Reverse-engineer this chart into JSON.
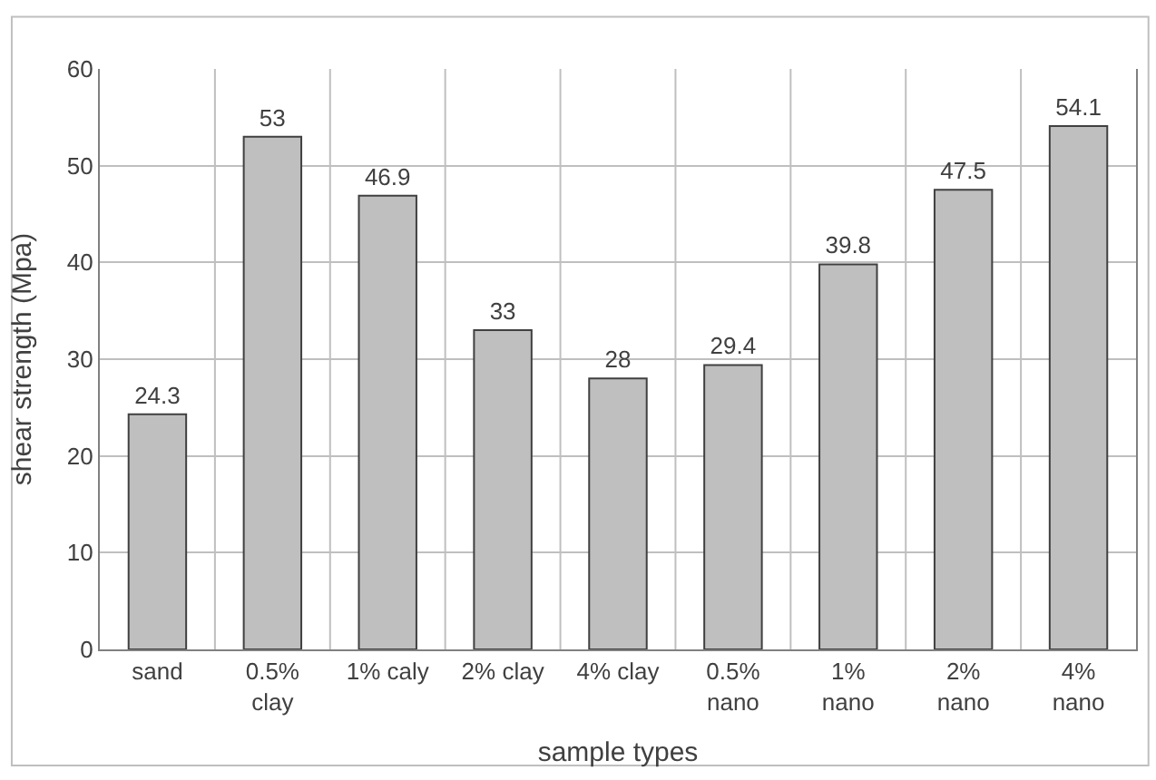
{
  "chart_data": {
    "type": "bar",
    "xlabel": "sample types",
    "ylabel": "shear strength (Mpa)",
    "categories": [
      "sand",
      "0.5%\nclay",
      "1% caly",
      "2% clay",
      "4% clay",
      "0.5%\nnano",
      "1%\nnano",
      "2%\nnano",
      "4%\nnano"
    ],
    "values": [
      24.3,
      53,
      46.9,
      33,
      28,
      29.4,
      39.8,
      47.5,
      54.1
    ],
    "color": "#bfbfbf",
    "ylim": [
      0,
      60
    ],
    "yticks": [
      0,
      10,
      20,
      30,
      40,
      50,
      60
    ],
    "grid": true,
    "data_labels": true
  }
}
